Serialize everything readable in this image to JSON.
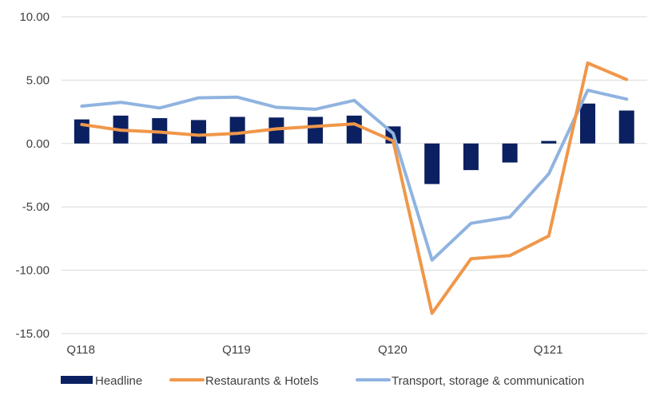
{
  "chart_data": {
    "type": "bar+line",
    "categories": [
      "Q118",
      "",
      "",
      "",
      "Q119",
      "",
      "",
      "",
      "Q120",
      "",
      "",
      "",
      "Q121",
      "",
      ""
    ],
    "ylim": [
      -15,
      10
    ],
    "yticks": [
      "10.00",
      "5.00",
      "0.00",
      "-5.00",
      "-10.00",
      "-15.00"
    ],
    "ytick_values": [
      10,
      5,
      0,
      -5,
      -10,
      -15
    ],
    "grid": true,
    "legend_position": "bottom",
    "series": [
      {
        "name": "Headline",
        "kind": "bar",
        "color": "#0b2060",
        "values": [
          1.9,
          2.2,
          2.0,
          1.85,
          2.1,
          2.05,
          2.1,
          2.2,
          1.35,
          -3.2,
          -2.1,
          -1.5,
          0.2,
          3.15,
          2.6
        ]
      },
      {
        "name": "Restaurants & Hotels",
        "kind": "line",
        "color": "#f0974a",
        "values": [
          1.5,
          1.05,
          0.9,
          0.65,
          0.8,
          1.15,
          1.35,
          1.55,
          0.2,
          -13.4,
          -9.1,
          -8.85,
          -7.3,
          6.35,
          5.05
        ]
      },
      {
        "name": "Transport, storage & communication",
        "kind": "line",
        "color": "#90b3e0",
        "values": [
          2.95,
          3.25,
          2.8,
          3.6,
          3.65,
          2.85,
          2.7,
          3.4,
          0.8,
          -9.2,
          -6.3,
          -5.8,
          -2.4,
          4.2,
          3.5
        ]
      }
    ]
  }
}
